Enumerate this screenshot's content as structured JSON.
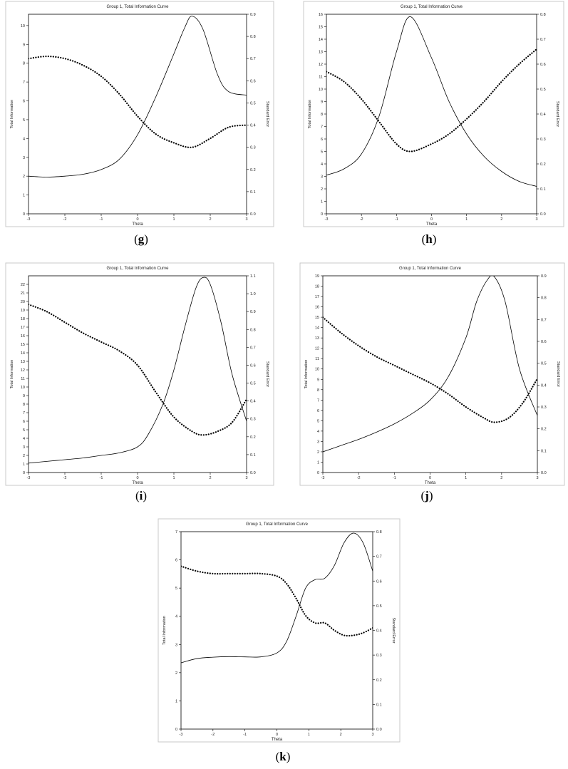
{
  "chart_data": [
    {
      "panel": "g",
      "type": "line",
      "title": "Group 1, Total Information Curve",
      "xlabel": "Theta",
      "ylabel": "Total Information",
      "y2label": "Standard Error",
      "xlim": [
        -3,
        3
      ],
      "ylim": [
        0,
        10.6
      ],
      "y2lim": [
        0,
        0.9
      ],
      "x_ticks": [
        -3,
        -2,
        -1,
        0,
        1,
        2,
        3
      ],
      "y_ticks": [
        0,
        1,
        2,
        3,
        4,
        5,
        6,
        7,
        8,
        9,
        10
      ],
      "y2_ticks": [
        0.0,
        0.1,
        0.2,
        0.3,
        0.4,
        0.5,
        0.6,
        0.7,
        0.8,
        0.9
      ],
      "grid": false,
      "series": [
        {
          "axis": "left",
          "style": "solid",
          "x": [
            -3,
            -2.5,
            -2,
            -1.5,
            -1,
            -0.5,
            0,
            0.5,
            1,
            1.3,
            1.5,
            1.8,
            2.2,
            2.5,
            3
          ],
          "y": [
            2.0,
            1.95,
            2.0,
            2.1,
            2.35,
            2.9,
            4.2,
            6.2,
            8.5,
            9.9,
            10.5,
            9.8,
            7.4,
            6.5,
            6.3
          ]
        },
        {
          "axis": "right",
          "style": "dotted",
          "x": [
            -3,
            -2.5,
            -2,
            -1.5,
            -1,
            -0.5,
            0,
            0.5,
            1,
            1.5,
            2,
            2.5,
            3
          ],
          "y": [
            0.7,
            0.71,
            0.7,
            0.67,
            0.62,
            0.54,
            0.44,
            0.36,
            0.32,
            0.3,
            0.34,
            0.39,
            0.4
          ]
        }
      ]
    },
    {
      "panel": "h",
      "type": "line",
      "title": "Group 1, Total Information Curve",
      "xlabel": "Theta",
      "ylabel": "Total Information",
      "y2label": "Standard Error",
      "xlim": [
        -3,
        3
      ],
      "ylim": [
        0,
        16
      ],
      "y2lim": [
        0,
        0.8
      ],
      "x_ticks": [
        -3,
        -2,
        -1,
        0,
        1,
        2,
        3
      ],
      "y_ticks": [
        0,
        1,
        2,
        3,
        4,
        5,
        6,
        7,
        8,
        9,
        10,
        11,
        12,
        13,
        14,
        15,
        16
      ],
      "y2_ticks": [
        0.0,
        0.1,
        0.2,
        0.3,
        0.4,
        0.5,
        0.6,
        0.7,
        0.8
      ],
      "grid": false,
      "series": [
        {
          "axis": "left",
          "style": "solid",
          "x": [
            -3,
            -2.5,
            -2,
            -1.5,
            -1,
            -0.6,
            0,
            0.5,
            1,
            1.5,
            2,
            2.5,
            3
          ],
          "y": [
            3.1,
            3.6,
            4.8,
            7.8,
            13.0,
            15.8,
            12.5,
            9.0,
            6.4,
            4.6,
            3.4,
            2.6,
            2.2
          ]
        },
        {
          "axis": "right",
          "style": "dotted",
          "x": [
            -3,
            -2.5,
            -2,
            -1.5,
            -1,
            -0.6,
            0,
            0.5,
            1,
            1.5,
            2,
            2.5,
            3
          ],
          "y": [
            0.57,
            0.53,
            0.46,
            0.37,
            0.28,
            0.25,
            0.28,
            0.32,
            0.38,
            0.45,
            0.53,
            0.6,
            0.66
          ]
        }
      ]
    },
    {
      "panel": "i",
      "type": "line",
      "title": "Group 1, Total Information Curve",
      "xlabel": "Theta",
      "ylabel": "Total Information",
      "y2label": "Standard Error",
      "xlim": [
        -3,
        3
      ],
      "ylim": [
        0,
        23
      ],
      "y2lim": [
        0,
        1.1
      ],
      "x_ticks": [
        -3,
        -2,
        -1,
        0,
        1,
        2,
        3
      ],
      "y_ticks": [
        0,
        1,
        2,
        3,
        4,
        5,
        6,
        7,
        8,
        9,
        10,
        11,
        12,
        13,
        14,
        15,
        16,
        17,
        18,
        19,
        20,
        21,
        22
      ],
      "y2_ticks": [
        0.0,
        0.1,
        0.2,
        0.3,
        0.4,
        0.5,
        0.6,
        0.7,
        0.8,
        0.9,
        1.0,
        1.1
      ],
      "grid": false,
      "series": [
        {
          "axis": "left",
          "style": "solid",
          "x": [
            -3,
            -2.5,
            -2,
            -1.5,
            -1,
            -0.5,
            0,
            0.3,
            0.7,
            1,
            1.3,
            1.6,
            1.8,
            2.0,
            2.3,
            2.6,
            3
          ],
          "y": [
            1.1,
            1.3,
            1.5,
            1.7,
            2.0,
            2.3,
            3.0,
            4.5,
            8.0,
            12.0,
            17.0,
            21.5,
            22.8,
            22.0,
            17.5,
            11.5,
            6.0
          ]
        },
        {
          "axis": "right",
          "style": "dotted",
          "x": [
            -3,
            -2.5,
            -2,
            -1.5,
            -1,
            -0.5,
            0,
            0.5,
            1,
            1.5,
            1.8,
            2.2,
            2.6,
            3
          ],
          "y": [
            0.94,
            0.9,
            0.84,
            0.78,
            0.73,
            0.68,
            0.6,
            0.45,
            0.31,
            0.23,
            0.21,
            0.23,
            0.28,
            0.41
          ]
        }
      ]
    },
    {
      "panel": "j",
      "type": "line",
      "title": "Group 1, Total Information Curve",
      "xlabel": "Theta",
      "ylabel": "Total Information",
      "y2label": "Standard Error",
      "xlim": [
        -3,
        3
      ],
      "ylim": [
        0,
        19
      ],
      "y2lim": [
        0,
        0.9
      ],
      "x_ticks": [
        -3,
        -2,
        -1,
        0,
        1,
        2,
        3
      ],
      "y_ticks": [
        0,
        1,
        2,
        3,
        4,
        5,
        6,
        7,
        8,
        9,
        10,
        11,
        12,
        13,
        14,
        15,
        16,
        17,
        18,
        19
      ],
      "y2_ticks": [
        0.0,
        0.1,
        0.2,
        0.3,
        0.4,
        0.5,
        0.6,
        0.7,
        0.8,
        0.9
      ],
      "grid": false,
      "series": [
        {
          "axis": "left",
          "style": "solid",
          "x": [
            -3,
            -2.5,
            -2,
            -1.5,
            -1,
            -0.5,
            0,
            0.5,
            1,
            1.3,
            1.6,
            1.8,
            2.1,
            2.5,
            3
          ],
          "y": [
            2.0,
            2.6,
            3.2,
            3.9,
            4.7,
            5.7,
            7.0,
            9.2,
            13.0,
            16.5,
            18.6,
            18.9,
            16.5,
            10.0,
            5.5
          ]
        },
        {
          "axis": "right",
          "style": "dotted",
          "x": [
            -3,
            -2.5,
            -2,
            -1.5,
            -1,
            -0.5,
            0,
            0.5,
            1,
            1.5,
            1.8,
            2.2,
            2.6,
            3
          ],
          "y": [
            0.71,
            0.64,
            0.58,
            0.53,
            0.49,
            0.45,
            0.41,
            0.36,
            0.3,
            0.25,
            0.23,
            0.25,
            0.32,
            0.43
          ]
        }
      ]
    },
    {
      "panel": "k",
      "type": "line",
      "title": "Group 1, Total Information Curve",
      "xlabel": "Theta",
      "ylabel": "Total Information",
      "y2label": "Standard Error",
      "xlim": [
        -3,
        3
      ],
      "ylim": [
        0,
        7
      ],
      "y2lim": [
        0,
        0.8
      ],
      "x_ticks": [
        -3,
        -2,
        -1,
        0,
        1,
        2,
        3
      ],
      "y_ticks": [
        0,
        1,
        2,
        3,
        4,
        5,
        6,
        7
      ],
      "y2_ticks": [
        0.0,
        0.1,
        0.2,
        0.3,
        0.4,
        0.5,
        0.6,
        0.7,
        0.8
      ],
      "grid": false,
      "series": [
        {
          "axis": "left",
          "style": "solid",
          "x": [
            -3,
            -2.5,
            -2,
            -1.5,
            -1,
            -0.5,
            0,
            0.3,
            0.6,
            0.9,
            1.2,
            1.5,
            1.8,
            2.1,
            2.4,
            2.7,
            3
          ],
          "y": [
            2.35,
            2.5,
            2.55,
            2.57,
            2.56,
            2.56,
            2.7,
            3.1,
            4.0,
            5.0,
            5.3,
            5.35,
            5.8,
            6.6,
            6.95,
            6.6,
            5.6
          ]
        },
        {
          "axis": "right",
          "style": "dotted",
          "x": [
            -3,
            -2.5,
            -2,
            -1.5,
            -1,
            -0.5,
            0,
            0.3,
            0.6,
            0.9,
            1.2,
            1.5,
            1.8,
            2.1,
            2.4,
            2.7,
            3
          ],
          "y": [
            0.66,
            0.64,
            0.63,
            0.63,
            0.63,
            0.63,
            0.62,
            0.59,
            0.53,
            0.46,
            0.43,
            0.43,
            0.4,
            0.38,
            0.38,
            0.39,
            0.41
          ]
        }
      ]
    }
  ],
  "captions": {
    "g": "g",
    "h": "h",
    "i": "i",
    "j": "j",
    "k": "k"
  }
}
